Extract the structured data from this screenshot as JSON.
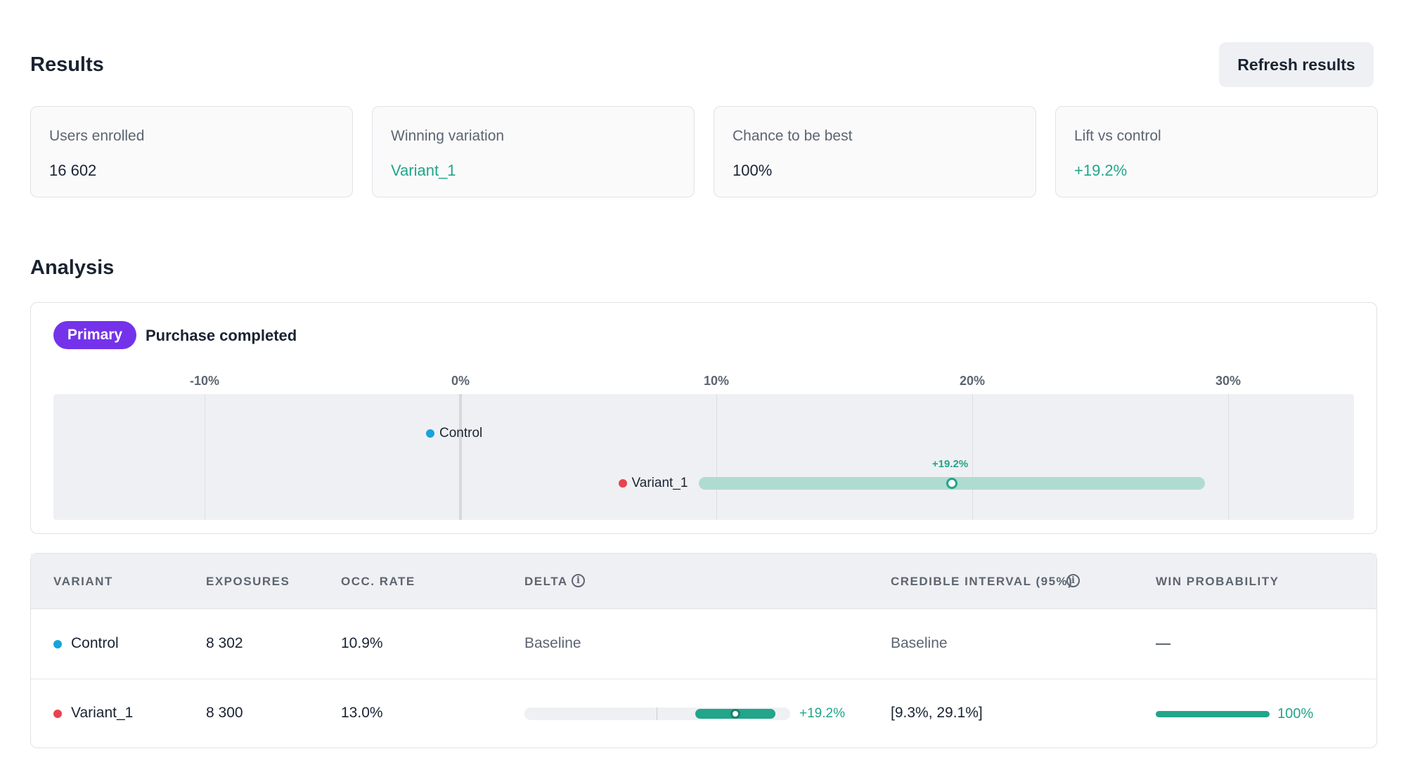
{
  "results": {
    "title": "Results",
    "refresh_label": "Refresh results",
    "cards": [
      {
        "label": "Users enrolled",
        "value": "16 602"
      },
      {
        "label": "Winning variation",
        "value": "Variant_1"
      },
      {
        "label": "Chance to be best",
        "value": "100%"
      },
      {
        "label": "Lift vs control",
        "value": "+19.2%"
      }
    ]
  },
  "analysis": {
    "title": "Analysis",
    "badge": "Primary",
    "metric": "Purchase completed",
    "axis_ticks": [
      "-10%",
      "0%",
      "10%",
      "20%",
      "30%"
    ],
    "control_label": "Control",
    "variant_label": "Variant_1",
    "variant_lift_label": "+19.2%",
    "colors": {
      "control": "#1aa3d9",
      "variant": "#e8434f",
      "positive": "#22a58a",
      "ci_bar": "#b0dccf",
      "badge": "#7433ea"
    }
  },
  "chart_data": {
    "type": "scatter",
    "title": "Purchase completed",
    "xlim": [
      -15,
      35
    ],
    "ticks": [
      -10,
      0,
      10,
      20,
      30
    ],
    "series": [
      {
        "name": "Control",
        "point": 0
      },
      {
        "name": "Variant_1",
        "point": 19.2,
        "interval": [
          9.3,
          29.1
        ]
      }
    ]
  },
  "table": {
    "headers": {
      "variant": "VARIANT",
      "exposures": "EXPOSURES",
      "occ_rate": "OCC. RATE",
      "delta": "DELTA",
      "credible_interval": "CREDIBLE INTERVAL (95%)",
      "win_probability": "WIN PROBABILITY"
    },
    "info_glyph": "i",
    "rows": [
      {
        "variant": "Control",
        "exposures": "8 302",
        "occ_rate": "10.9%",
        "delta": "Baseline",
        "credible_interval": "Baseline",
        "win_probability": "—"
      },
      {
        "variant": "Variant_1",
        "exposures": "8 300",
        "occ_rate": "13.0%",
        "delta": "+19.2%",
        "credible_interval": "[9.3%, 29.1%]",
        "win_probability": "100%",
        "win_fraction": 1.0
      }
    ]
  }
}
